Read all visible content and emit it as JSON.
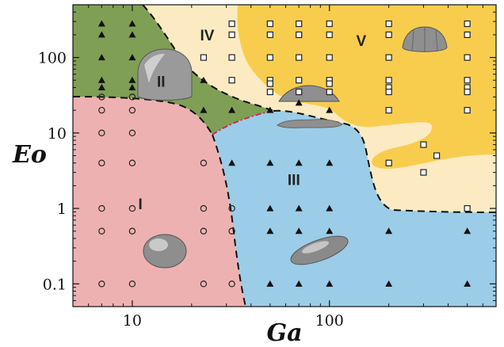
{
  "chart_data": {
    "type": "scatter",
    "xlabel": "Ga",
    "ylabel": "Eo",
    "xscale": "log",
    "yscale": "log",
    "xlim": [
      5,
      700
    ],
    "ylim": [
      0.05,
      500
    ],
    "xticks": [
      {
        "value": 10,
        "label": "10"
      },
      {
        "value": 100,
        "label": "100"
      }
    ],
    "yticks": [
      {
        "value": 0.1,
        "label": "0.1"
      },
      {
        "value": 1,
        "label": "1"
      },
      {
        "value": 10,
        "label": "10"
      },
      {
        "value": 100,
        "label": "100"
      }
    ],
    "regions": [
      {
        "label": "I",
        "color": "#eeb1b1",
        "x": 11,
        "y": 1.1
      },
      {
        "label": "II",
        "color": "#7f9f55",
        "x": 14,
        "y": 46
      },
      {
        "label": "III",
        "color": "#9bcde8",
        "x": 66,
        "y": 2.3
      },
      {
        "label": "IV",
        "color": "#fcebc2",
        "x": 24,
        "y": 190
      },
      {
        "label": "V",
        "color": "#f8cd4e",
        "x": 145,
        "y": 160
      }
    ],
    "series": [
      {
        "marker": "circle",
        "points": [
          [
            7,
            30
          ],
          [
            10,
            30
          ],
          [
            7,
            20
          ],
          [
            10,
            20
          ],
          [
            7,
            10
          ],
          [
            10,
            10
          ],
          [
            7,
            4
          ],
          [
            10,
            4
          ],
          [
            23,
            4
          ],
          [
            7,
            1
          ],
          [
            10,
            1
          ],
          [
            23,
            1
          ],
          [
            32,
            1
          ],
          [
            7,
            0.5
          ],
          [
            10,
            0.5
          ],
          [
            23,
            0.5
          ],
          [
            32,
            0.5
          ],
          [
            7,
            0.1
          ],
          [
            10,
            0.1
          ],
          [
            23,
            0.1
          ],
          [
            32,
            0.1
          ]
        ]
      },
      {
        "marker": "triangle",
        "points": [
          [
            7,
            280
          ],
          [
            10,
            280
          ],
          [
            7,
            200
          ],
          [
            10,
            200
          ],
          [
            7,
            100
          ],
          [
            10,
            100
          ],
          [
            7,
            50
          ],
          [
            10,
            50
          ],
          [
            7,
            40
          ],
          [
            10,
            40
          ],
          [
            23,
            50
          ],
          [
            32,
            50
          ],
          [
            23,
            20
          ],
          [
            32,
            20
          ],
          [
            50,
            20
          ],
          [
            70,
            25
          ],
          [
            100,
            20
          ],
          [
            32,
            4
          ],
          [
            50,
            4
          ],
          [
            70,
            4
          ],
          [
            100,
            4
          ],
          [
            50,
            1
          ],
          [
            70,
            1
          ],
          [
            100,
            1
          ],
          [
            50,
            0.5
          ],
          [
            70,
            0.5
          ],
          [
            100,
            0.5
          ],
          [
            200,
            0.5
          ],
          [
            500,
            0.5
          ],
          [
            50,
            0.1
          ],
          [
            70,
            0.1
          ],
          [
            100,
            0.1
          ],
          [
            200,
            0.1
          ],
          [
            500,
            0.1
          ]
        ]
      },
      {
        "marker": "square",
        "points": [
          [
            32,
            280
          ],
          [
            50,
            280
          ],
          [
            70,
            280
          ],
          [
            100,
            280
          ],
          [
            200,
            280
          ],
          [
            500,
            280
          ],
          [
            32,
            200
          ],
          [
            50,
            200
          ],
          [
            70,
            200
          ],
          [
            100,
            200
          ],
          [
            200,
            200
          ],
          [
            500,
            200
          ],
          [
            23,
            100
          ],
          [
            32,
            100
          ],
          [
            50,
            100
          ],
          [
            70,
            100
          ],
          [
            100,
            100
          ],
          [
            200,
            100
          ],
          [
            500,
            100
          ],
          [
            32,
            50
          ],
          [
            50,
            50
          ],
          [
            70,
            50
          ],
          [
            100,
            50
          ],
          [
            200,
            50
          ],
          [
            500,
            50
          ],
          [
            50,
            45
          ],
          [
            100,
            45
          ],
          [
            200,
            40
          ],
          [
            500,
            40
          ],
          [
            50,
            35
          ],
          [
            70,
            35
          ],
          [
            100,
            35
          ],
          [
            200,
            35
          ],
          [
            500,
            35
          ],
          [
            200,
            20
          ],
          [
            500,
            20
          ],
          [
            300,
            7
          ],
          [
            350,
            5
          ],
          [
            200,
            4
          ],
          [
            300,
            3
          ],
          [
            500,
            1
          ]
        ]
      }
    ]
  }
}
